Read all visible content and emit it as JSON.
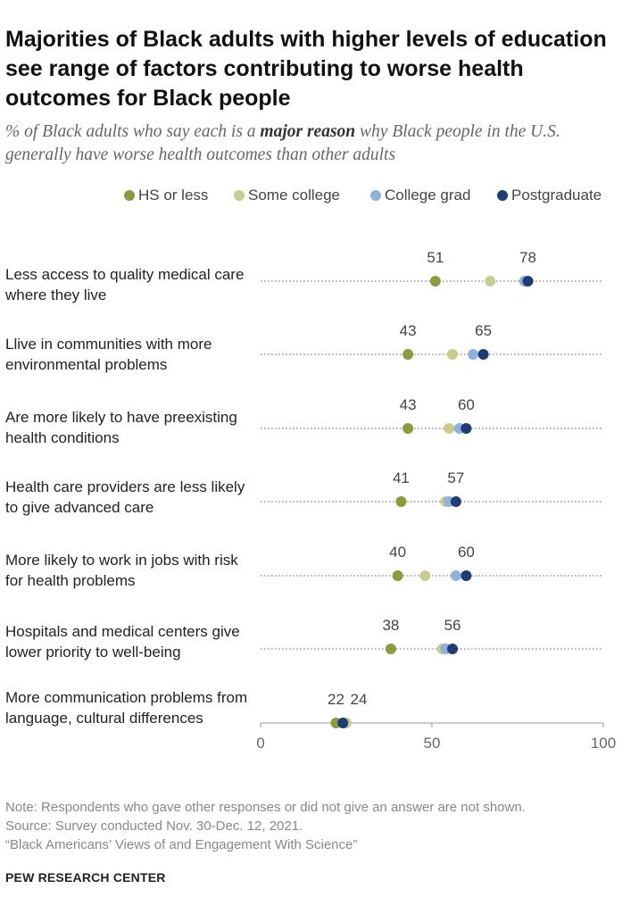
{
  "title": "Majorities of Black adults with higher levels of education see range of factors contributing to worse health outcomes for Black people",
  "subtitle": {
    "pre": "% of Black adults who say each is a ",
    "emph": "major reason",
    "post": " why Black people in the U.S. generally have worse health outcomes than other adults"
  },
  "chart_data": {
    "type": "scatter",
    "xlim": [
      0,
      100
    ],
    "x_ticks": [
      "0",
      "50",
      "100"
    ],
    "legend_position": "top",
    "series": [
      {
        "name": "HS or less",
        "color": "#8a9a3c"
      },
      {
        "name": "Some college",
        "color": "#c8cd8e"
      },
      {
        "name": "College grad",
        "color": "#8fb1de"
      },
      {
        "name": "Postgraduate",
        "color": "#1e3d75"
      }
    ],
    "categories": [
      {
        "label": "Less access to quality medical care where they live",
        "values": [
          51,
          67,
          77,
          78
        ],
        "low_label": "51",
        "high_label": "78"
      },
      {
        "label": "Llive in communities with more environmental problems",
        "values": [
          43,
          56,
          62,
          65
        ],
        "low_label": "43",
        "high_label": "65"
      },
      {
        "label": "Are more likely to have preexisting health conditions",
        "values": [
          43,
          55,
          58,
          60
        ],
        "low_label": "43",
        "high_label": "60"
      },
      {
        "label": "Health care providers are less likely to give advanced care",
        "values": [
          41,
          54,
          55,
          57
        ],
        "low_label": "41",
        "high_label": "57"
      },
      {
        "label": "More likely to work in jobs with risk for health problems",
        "values": [
          40,
          48,
          57,
          60
        ],
        "low_label": "40",
        "high_label": "60"
      },
      {
        "label": "Hospitals and medical centers give lower priority to well-being",
        "values": [
          38,
          53,
          54,
          56
        ],
        "low_label": "38",
        "high_label": "56"
      },
      {
        "label": "More communication problems from language, cultural differences",
        "values": [
          22,
          25,
          24,
          24
        ],
        "low_label": "22",
        "high_label": "24"
      }
    ]
  },
  "footer": {
    "note": "Note: Respondents who gave other responses or did not give an answer are not shown.",
    "source": "Source: Survey conducted Nov. 30-Dec. 12, 2021.",
    "report": "“Black Americans’ Views of and Engagement With Science”"
  },
  "brand": "PEW RESEARCH CENTER"
}
